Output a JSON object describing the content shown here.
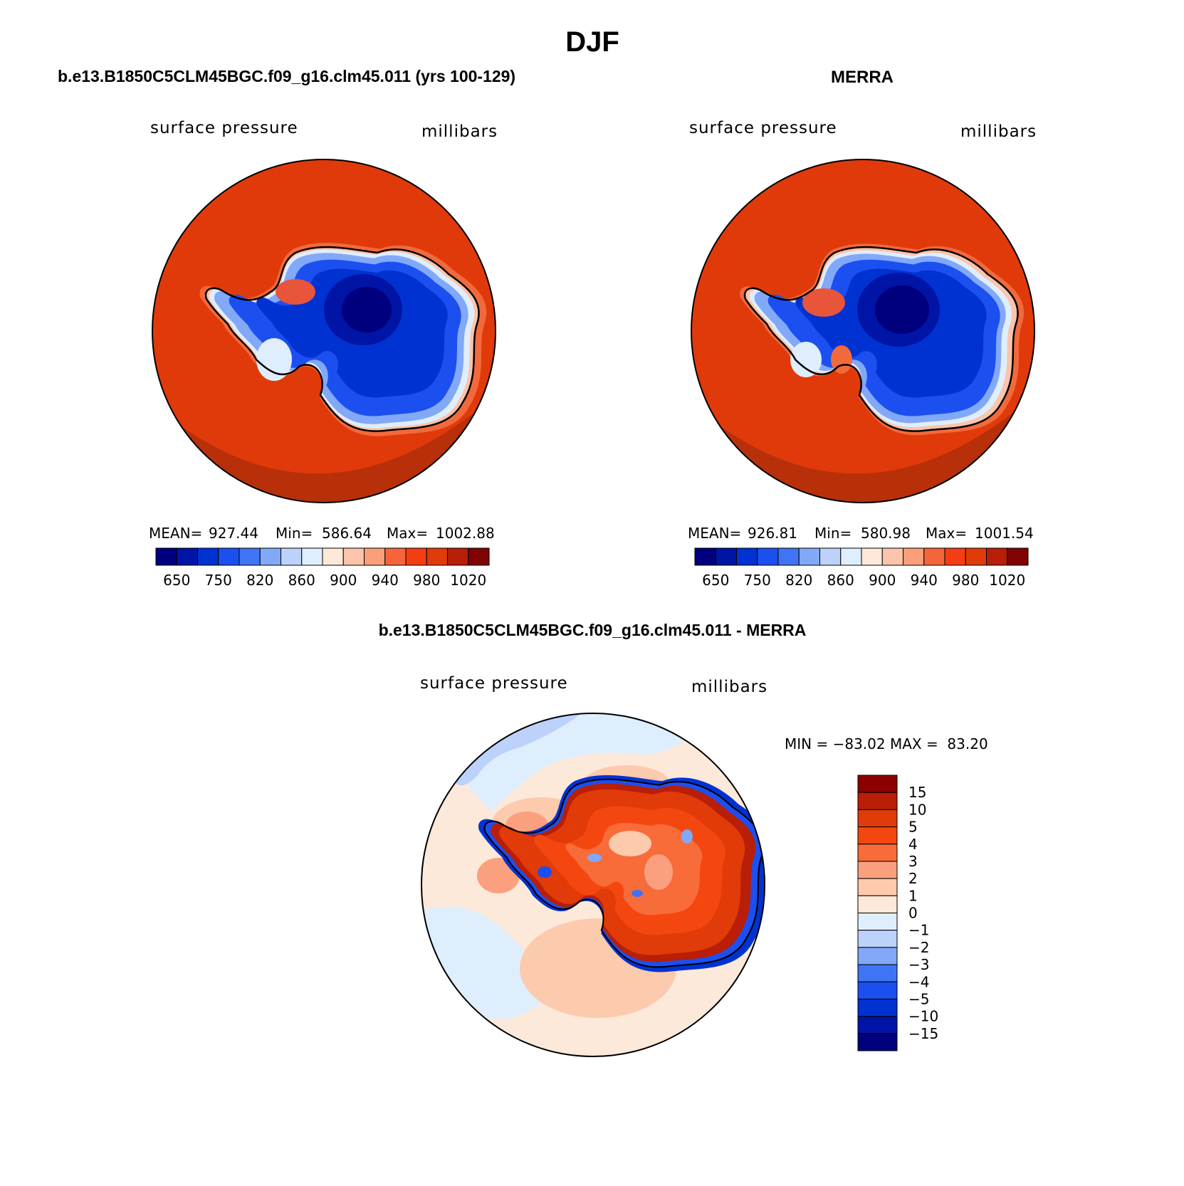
{
  "figure": {
    "title": "DJF",
    "panel_left_title": "b.e13.B1850C5CLM45BGC.f09_g16.clm45.011 (yrs 100-129)",
    "panel_right_title": "MERRA",
    "panel_diff_title": "b.e13.B1850C5CLM45BGC.f09_g16.clm45.011 - MERRA"
  },
  "panels": [
    {
      "id": "model",
      "variable_label": "surface pressure",
      "units_label": "millibars",
      "stats": {
        "mean_label": "MEAN=",
        "mean": "927.44",
        "min_label": "Min=",
        "min": "586.64",
        "max_label": "Max=",
        "max": "1002.88"
      }
    },
    {
      "id": "merra",
      "variable_label": "surface pressure",
      "units_label": "millibars",
      "stats": {
        "mean_label": "MEAN=",
        "mean": "926.81",
        "min_label": "Min=",
        "min": "580.98",
        "max_label": "Max=",
        "max": "1001.54"
      }
    },
    {
      "id": "difference",
      "variable_label": "surface pressure",
      "units_label": "millibars",
      "stats_text": "MIN = −83.02 MAX =  83.20"
    }
  ],
  "colorbar_absolute": {
    "tick_labels": [
      "650",
      "750",
      "820",
      "860",
      "900",
      "940",
      "980",
      "1020"
    ],
    "levels": [
      600,
      650,
      700,
      750,
      800,
      820,
      840,
      860,
      880,
      900,
      920,
      940,
      960,
      980,
      1000,
      1020
    ],
    "colors": [
      "#00007f",
      "#0014a5",
      "#0032d2",
      "#1c4ff0",
      "#3f74f5",
      "#82a8f8",
      "#bcd2fb",
      "#dfeefc",
      "#fde9d9",
      "#fcc4ab",
      "#fb9e7a",
      "#f6653a",
      "#f43d12",
      "#e03b08",
      "#b81e08",
      "#7f0303"
    ]
  },
  "colorbar_difference": {
    "tick_labels": [
      "15",
      "10",
      "5",
      "4",
      "3",
      "2",
      "1",
      "0",
      "−1",
      "−2",
      "−3",
      "−4",
      "−5",
      "−10",
      "−15"
    ],
    "colors_top_to_bottom": [
      "#8c0000",
      "#b81e08",
      "#e03b08",
      "#f4470f",
      "#f86c3a",
      "#fba07e",
      "#fccaad",
      "#fde9d9",
      "#dfeefc",
      "#bcd2fb",
      "#82a8f8",
      "#3f74f5",
      "#1c4ff0",
      "#0032d2",
      "#0014a5",
      "#00007f"
    ]
  },
  "map_colors": {
    "ocean_absolute": "#e03a0b",
    "ice_deep": "#00007f",
    "ice_mid": "#1c4ff0",
    "coast_line": "#000000",
    "diff_background": "#fde9d9",
    "diff_negative_light": "#dfeefc",
    "diff_negative": "#bcd2fb",
    "diff_positive": "#fba07e",
    "diff_land_red": "#e03b08",
    "diff_land_blue": "#0032d2"
  }
}
